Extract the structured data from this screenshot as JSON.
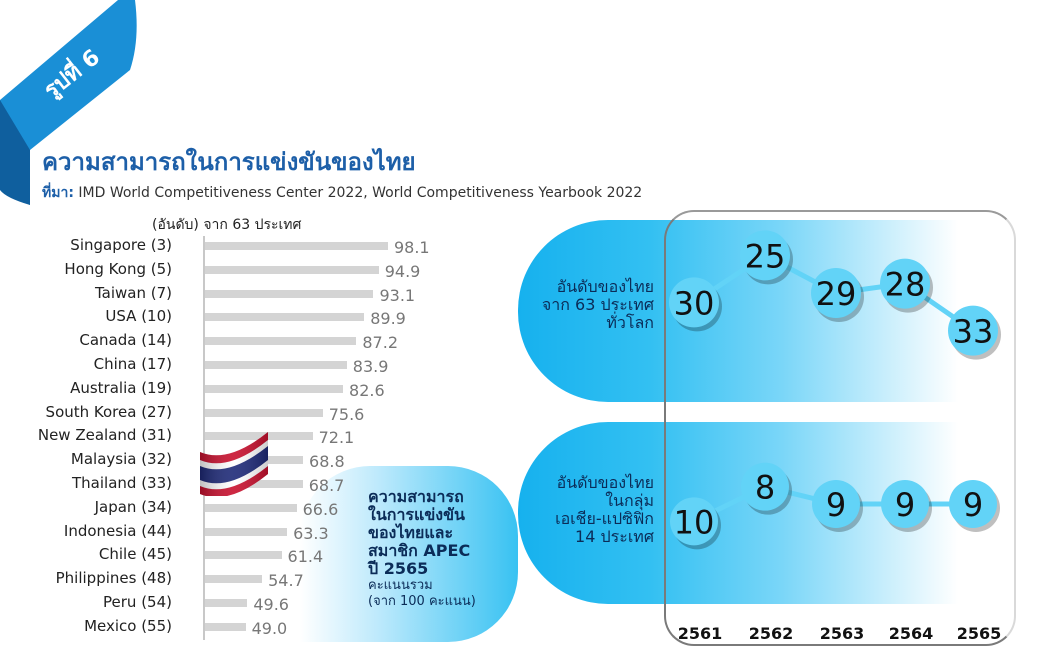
{
  "ribbon": {
    "label": "รูปที่ 6"
  },
  "title": "ความสามารถในการแข่งขันของไทย",
  "source": {
    "prefix": "ที่มา:",
    "text": "IMD World Competitiveness Center 2022, World Competitiveness Yearbook 2022"
  },
  "unit_note": "(อันดับ) จาก 63 ประเทศ",
  "apec_label": {
    "line1": "ความสามารถ",
    "line2": "ในการแข่งขัน",
    "line3": "ของไทยและ",
    "line4": "สมาชิก APEC",
    "line5": "ปี 2565",
    "line6": "คะแนนรวม",
    "line7": "(จาก 100 คะแนน)"
  },
  "ranking_labels": {
    "world": {
      "line1": "อันดับของไทย",
      "line2": "จาก 63 ประเทศ",
      "line3": "ทั่วโลก"
    },
    "asia": {
      "line1": "อันดับของไทย",
      "line2": "ในกลุ่ม",
      "line3": "เอเชีย-แปซิฟิก",
      "line4": "14 ประเทศ"
    }
  },
  "colors": {
    "title": "#1d5fa8",
    "bar": "#d4d4d4",
    "bubble": "#62d3f7",
    "band": "#33c0f2"
  },
  "chart_data": [
    {
      "type": "bar",
      "orientation": "horizontal",
      "categories": [
        "Singapore (3)",
        "Hong Kong (5)",
        "Taiwan (7)",
        "USA (10)",
        "Canada (14)",
        "China (17)",
        "Australia (19)",
        "South Korea (27)",
        "New Zealand (31)",
        "Malaysia (32)",
        "Thailand (33)",
        "Japan (34)",
        "Indonesia (44)",
        "Chile (45)",
        "Philippines (48)",
        "Peru (54)",
        "Mexico (55)"
      ],
      "values": [
        98.1,
        94.9,
        93.1,
        89.9,
        87.2,
        83.9,
        82.6,
        75.6,
        72.1,
        68.8,
        68.7,
        66.6,
        63.3,
        61.4,
        54.7,
        49.6,
        49.0
      ],
      "value_labels": [
        "98.1",
        "94.9",
        "93.1",
        "89.9",
        "87.2",
        "83.9",
        "82.6",
        "75.6",
        "72.1",
        "68.8",
        "68.7",
        "66.6",
        "63.3",
        "61.4",
        "54.7",
        "49.6",
        "49.0"
      ]
    },
    {
      "type": "line",
      "x": [
        "2561",
        "2562",
        "2563",
        "2564",
        "2565"
      ],
      "series": [
        {
          "values": [
            30,
            25,
            29,
            28,
            33
          ]
        },
        {
          "values": [
            10,
            8,
            9,
            9,
            9
          ]
        }
      ]
    }
  ]
}
